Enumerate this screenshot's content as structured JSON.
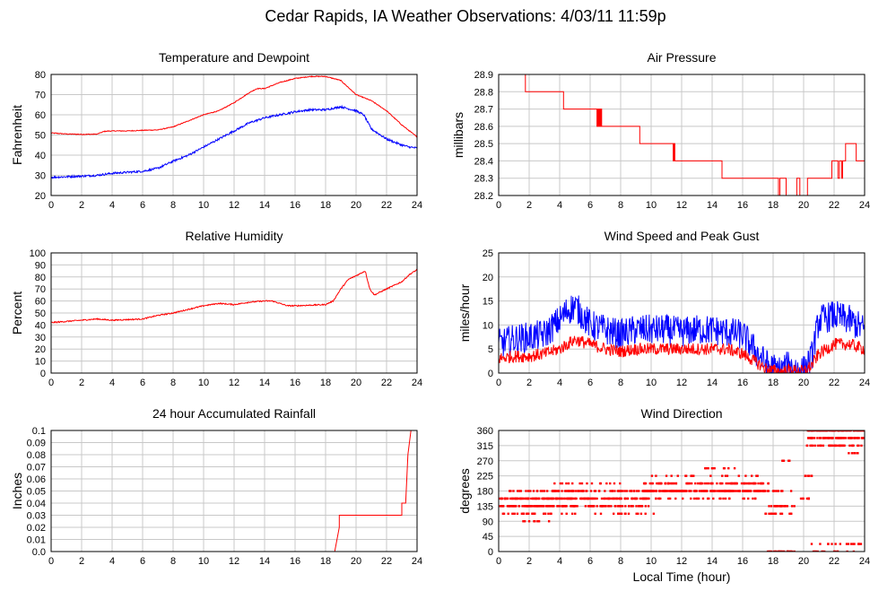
{
  "page_title": "Cedar Rapids, IA Weather Observations: 4/03/11 11:59p",
  "x_axis_label": "Local Time (hour)",
  "colors": {
    "red": "#ff0000",
    "blue": "#0000ff",
    "grid": "#c8c8c8",
    "frame": "#000000"
  },
  "chart_data": [
    {
      "id": "temp",
      "type": "line",
      "title": "Temperature and Dewpoint",
      "ylabel": "Fahrenheit",
      "xlabel": "",
      "xlim": [
        0,
        24
      ],
      "ylim": [
        20,
        80
      ],
      "xticks": [
        0,
        2,
        4,
        6,
        8,
        10,
        12,
        14,
        16,
        18,
        20,
        22,
        24
      ],
      "yticks": [
        20,
        30,
        40,
        50,
        60,
        70,
        80
      ],
      "series": [
        {
          "color": "#ff0000",
          "noise": 0.2,
          "x": [
            0,
            1,
            2,
            3,
            3.5,
            4,
            5,
            6,
            7,
            8,
            9,
            10,
            11,
            12,
            13,
            13.5,
            14,
            15,
            16,
            17,
            18,
            19,
            20,
            21,
            22,
            23,
            24
          ],
          "y": [
            51,
            50.5,
            50.3,
            50.4,
            51.8,
            52,
            52,
            52.3,
            52.5,
            54,
            57,
            60,
            62,
            66,
            71,
            73,
            73,
            76,
            78,
            79,
            79,
            77,
            70,
            67,
            62,
            55,
            49
          ]
        },
        {
          "color": "#0000ff",
          "noise": 0.5,
          "x": [
            0,
            1,
            2,
            3,
            4,
            5,
            6,
            7,
            8,
            9,
            10,
            11,
            12,
            13,
            14,
            15,
            16,
            17,
            18,
            19,
            20,
            20.5,
            21,
            22,
            23,
            23.5,
            24
          ],
          "y": [
            29,
            29.3,
            29.6,
            30,
            31,
            31.5,
            32,
            33.5,
            37,
            40,
            44,
            48,
            52,
            56,
            58.5,
            60,
            61.5,
            62.5,
            62.5,
            64,
            62,
            60,
            53,
            48,
            45,
            44,
            43.5
          ]
        }
      ]
    },
    {
      "id": "pressure",
      "type": "line",
      "title": "Air Pressure",
      "ylabel": "millibars",
      "xlabel": "",
      "xlim": [
        0,
        24
      ],
      "ylim": [
        28.2,
        28.9
      ],
      "xticks": [
        0,
        2,
        4,
        6,
        8,
        10,
        12,
        14,
        16,
        18,
        20,
        22,
        24
      ],
      "yticks": [
        28.2,
        28.3,
        28.4,
        28.5,
        28.6,
        28.7,
        28.8,
        28.9
      ],
      "series": [
        {
          "color": "#ff0000",
          "step": true,
          "x": [
            0,
            1.7,
            1.75,
            4.2,
            4.25,
            6.4,
            6.45,
            6.5,
            6.55,
            6.6,
            6.65,
            6.7,
            6.75,
            9.2,
            9.25,
            11.4,
            11.45,
            11.5,
            11.55,
            14.6,
            14.65,
            18.3,
            18.35,
            18.45,
            18.5,
            18.8,
            18.85,
            19.5,
            19.55,
            19.7,
            19.75,
            20.2,
            20.25,
            21.8,
            21.85,
            22.2,
            22.25,
            22.35,
            22.4,
            22.5,
            22.55,
            22.7,
            22.75,
            23.1,
            23.15,
            23.4,
            23.45,
            24
          ],
          "y": [
            28.9,
            28.9,
            28.8,
            28.8,
            28.7,
            28.7,
            28.6,
            28.7,
            28.6,
            28.7,
            28.6,
            28.7,
            28.6,
            28.6,
            28.5,
            28.5,
            28.4,
            28.5,
            28.4,
            28.4,
            28.3,
            28.3,
            28.2,
            28.3,
            28.3,
            28.3,
            28.2,
            28.2,
            28.3,
            28.3,
            28.2,
            28.2,
            28.3,
            28.3,
            28.4,
            28.4,
            28.3,
            28.4,
            28.4,
            28.3,
            28.4,
            28.4,
            28.5,
            28.5,
            28.5,
            28.5,
            28.4,
            28.4
          ]
        }
      ]
    },
    {
      "id": "humidity",
      "type": "line",
      "title": "Relative Humidity",
      "ylabel": "Percent",
      "xlabel": "",
      "xlim": [
        0,
        24
      ],
      "ylim": [
        0,
        100
      ],
      "xticks": [
        0,
        2,
        4,
        6,
        8,
        10,
        12,
        14,
        16,
        18,
        20,
        22,
        24
      ],
      "yticks": [
        0,
        10,
        20,
        30,
        40,
        50,
        60,
        70,
        80,
        90,
        100
      ],
      "series": [
        {
          "color": "#ff0000",
          "noise": 0.5,
          "x": [
            0,
            1,
            2,
            3,
            4,
            5,
            6,
            7,
            8,
            9,
            10,
            11,
            12,
            13,
            14,
            14.5,
            15,
            15.5,
            16,
            17,
            18,
            18.5,
            19,
            19.5,
            20,
            20.6,
            20.9,
            21.2,
            22,
            23,
            23.5,
            24
          ],
          "y": [
            42,
            43,
            44,
            45,
            44,
            44.5,
            45,
            48,
            50,
            53,
            56,
            58,
            57,
            59,
            60,
            60,
            58,
            56,
            56,
            56.5,
            57,
            60,
            70,
            78,
            81,
            85,
            70,
            65,
            70,
            76,
            82,
            86
          ]
        }
      ]
    },
    {
      "id": "wind",
      "type": "line",
      "title": "Wind Speed and Peak Gust",
      "ylabel": "miles/hour",
      "xlabel": "",
      "xlim": [
        0,
        24
      ],
      "ylim": [
        0,
        25
      ],
      "xticks": [
        0,
        2,
        4,
        6,
        8,
        10,
        12,
        14,
        16,
        18,
        20,
        22,
        24
      ],
      "yticks": [
        0,
        5,
        10,
        15,
        20,
        25
      ],
      "series": [
        {
          "color": "#0000ff",
          "noise": 3.2,
          "floor": 0,
          "x": [
            0,
            1,
            2,
            3,
            4,
            4.5,
            5,
            5.5,
            6,
            7,
            8,
            9,
            10,
            11,
            12,
            13,
            14,
            15,
            16,
            16.5,
            17,
            17.5,
            18,
            18.5,
            19,
            19.5,
            20,
            20.5,
            21,
            22,
            23,
            24
          ],
          "y": [
            6,
            7,
            7.5,
            8,
            11,
            13,
            14,
            12,
            10,
            9,
            8,
            9,
            9,
            9,
            8.5,
            9,
            9,
            8.5,
            8,
            6,
            4,
            2,
            1,
            0.5,
            1.5,
            1,
            0.5,
            3,
            11,
            12,
            11,
            9
          ]
        },
        {
          "color": "#ff0000",
          "noise": 1.3,
          "floor": 0,
          "x": [
            0,
            1,
            2,
            3,
            4,
            5,
            6,
            7,
            8,
            9,
            10,
            11,
            12,
            13,
            14,
            15,
            16,
            16.5,
            17,
            17.5,
            18,
            18.5,
            19,
            19.5,
            20,
            20.5,
            21,
            22,
            23,
            24
          ],
          "y": [
            3,
            3.5,
            3.5,
            4,
            5,
            7,
            6,
            5,
            4.5,
            5,
            5,
            5,
            5,
            5,
            5,
            5,
            4,
            3,
            2,
            1,
            0.5,
            0.3,
            0.6,
            0.5,
            0.3,
            1.5,
            4,
            6,
            6,
            5
          ]
        }
      ]
    },
    {
      "id": "rain",
      "type": "line",
      "title": "24 hour Accumulated Rainfall",
      "ylabel": "Inches",
      "xlabel": "",
      "xlim": [
        0,
        24
      ],
      "ylim": [
        0,
        0.1
      ],
      "xticks": [
        0,
        2,
        4,
        6,
        8,
        10,
        12,
        14,
        16,
        18,
        20,
        22,
        24
      ],
      "yticks": [
        0.0,
        0.01,
        0.02,
        0.03,
        0.04,
        0.05,
        0.06,
        0.07,
        0.08,
        0.09,
        0.1
      ],
      "series": [
        {
          "color": "#ff0000",
          "x": [
            0,
            18.6,
            18.9,
            18.9,
            22.9,
            23.0,
            23.0,
            23.25,
            23.4,
            23.6,
            24
          ],
          "y": [
            0,
            0,
            0.02,
            0.03,
            0.03,
            0.03,
            0.04,
            0.04,
            0.08,
            0.1,
            0.1
          ]
        }
      ]
    },
    {
      "id": "direction",
      "type": "scatter",
      "title": "Wind Direction",
      "ylabel": "degrees",
      "xlabel": "Local Time (hour)",
      "xlim": [
        0,
        24
      ],
      "ylim": [
        0,
        360
      ],
      "xticks": [
        0,
        2,
        4,
        6,
        8,
        10,
        12,
        14,
        16,
        18,
        20,
        22,
        24
      ],
      "yticks": [
        0,
        45,
        90,
        135,
        180,
        225,
        270,
        315,
        360
      ],
      "series": [
        {
          "color": "#ff0000",
          "bands": [
            {
              "x0": 0,
              "x1": 3.6,
              "y": 157.5,
              "n": 70
            },
            {
              "x0": 0,
              "x1": 3.6,
              "y": 135,
              "n": 60
            },
            {
              "x0": 0.2,
              "x1": 3.5,
              "y": 112.5,
              "n": 24
            },
            {
              "x0": 0.3,
              "x1": 3.3,
              "y": 180,
              "n": 16
            },
            {
              "x0": 1.5,
              "x1": 3.4,
              "y": 90,
              "n": 8
            },
            {
              "x0": 3.5,
              "x1": 10,
              "y": 157.5,
              "n": 110
            },
            {
              "x0": 3.5,
              "x1": 10,
              "y": 135,
              "n": 70
            },
            {
              "x0": 3.5,
              "x1": 10,
              "y": 180,
              "n": 70
            },
            {
              "x0": 3.5,
              "x1": 8,
              "y": 202.5,
              "n": 16
            },
            {
              "x0": 4,
              "x1": 10.5,
              "y": 112.5,
              "n": 20
            },
            {
              "x0": 9.5,
              "x1": 17.7,
              "y": 180,
              "n": 160
            },
            {
              "x0": 9.5,
              "x1": 17.7,
              "y": 202.5,
              "n": 90
            },
            {
              "x0": 10,
              "x1": 17,
              "y": 157.5,
              "n": 30
            },
            {
              "x0": 10,
              "x1": 17,
              "y": 225,
              "n": 20
            },
            {
              "x0": 13.5,
              "x1": 16,
              "y": 247.5,
              "n": 10
            },
            {
              "x0": 17.5,
              "x1": 19.5,
              "y": 135,
              "n": 20
            },
            {
              "x0": 17.5,
              "x1": 19.5,
              "y": 112.5,
              "n": 14
            },
            {
              "x0": 17.6,
              "x1": 19.5,
              "y": 0,
              "n": 30
            },
            {
              "x0": 18,
              "x1": 19.3,
              "y": 180,
              "n": 8
            },
            {
              "x0": 18.5,
              "x1": 19.1,
              "y": 270,
              "n": 6
            },
            {
              "x0": 19.8,
              "x1": 20.5,
              "y": 157.5,
              "n": 8
            },
            {
              "x0": 20.0,
              "x1": 20.6,
              "y": 225,
              "n": 6
            },
            {
              "x0": 20.2,
              "x1": 24,
              "y": 360,
              "n": 90
            },
            {
              "x0": 20.2,
              "x1": 24,
              "y": 337.5,
              "n": 60
            },
            {
              "x0": 20.2,
              "x1": 23.8,
              "y": 315,
              "n": 40
            },
            {
              "x0": 20.3,
              "x1": 23.8,
              "y": 22.5,
              "n": 16
            },
            {
              "x0": 20.5,
              "x1": 23.5,
              "y": 0,
              "n": 16
            },
            {
              "x0": 22.8,
              "x1": 23.6,
              "y": 292.5,
              "n": 6
            }
          ]
        }
      ]
    }
  ]
}
